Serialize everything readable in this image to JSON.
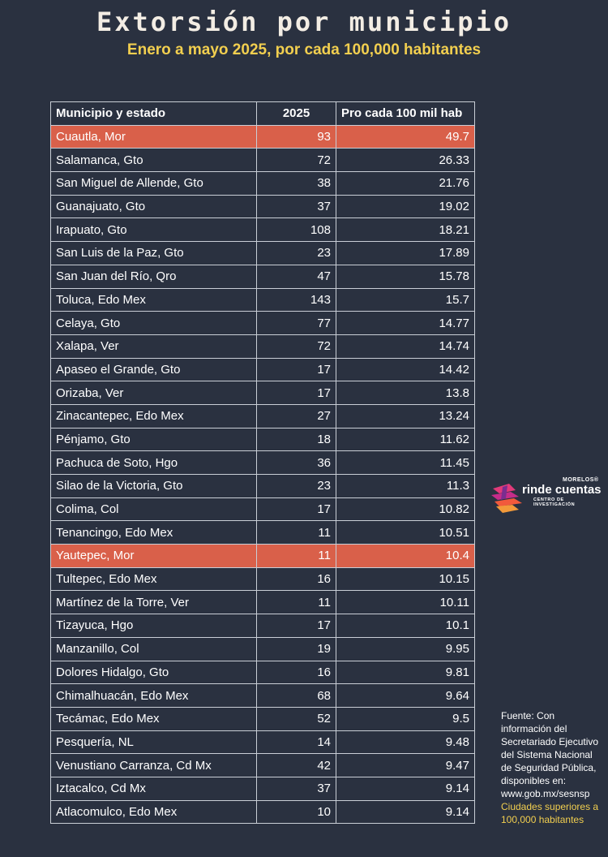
{
  "title": "Extorsión por municipio",
  "subtitle": "Enero a mayo 2025, por cada 100,000 habitantes",
  "table": {
    "headers": [
      "Municipio y estado",
      "2025",
      "Pro cada 100 mil hab"
    ],
    "rows": [
      {
        "name": "Cuautla, Mor",
        "count": "93",
        "rate": "49.7",
        "highlight": true
      },
      {
        "name": "Salamanca, Gto",
        "count": "72",
        "rate": "26.33"
      },
      {
        "name": "San Miguel de Allende, Gto",
        "count": "38",
        "rate": "21.76"
      },
      {
        "name": "Guanajuato, Gto",
        "count": "37",
        "rate": "19.02"
      },
      {
        "name": "Irapuato, Gto",
        "count": "108",
        "rate": "18.21"
      },
      {
        "name": "San Luis de la Paz, Gto",
        "count": "23",
        "rate": "17.89"
      },
      {
        "name": "San Juan del Río, Qro",
        "count": "47",
        "rate": "15.78"
      },
      {
        "name": "Toluca, Edo Mex",
        "count": "143",
        "rate": "15.7"
      },
      {
        "name": "Celaya, Gto",
        "count": "77",
        "rate": "14.77"
      },
      {
        "name": "Xalapa, Ver",
        "count": "72",
        "rate": "14.74"
      },
      {
        "name": "Apaseo el Grande, Gto",
        "count": "17",
        "rate": "14.42"
      },
      {
        "name": "Orizaba, Ver",
        "count": "17",
        "rate": "13.8"
      },
      {
        "name": "Zinacantepec, Edo Mex",
        "count": "27",
        "rate": "13.24"
      },
      {
        "name": "Pénjamo, Gto",
        "count": "18",
        "rate": "11.62"
      },
      {
        "name": "Pachuca de Soto, Hgo",
        "count": "36",
        "rate": "11.45"
      },
      {
        "name": "Silao de la Victoria, Gto",
        "count": "23",
        "rate": "11.3"
      },
      {
        "name": "Colima, Col",
        "count": "17",
        "rate": "10.82"
      },
      {
        "name": "Tenancingo, Edo Mex",
        "count": "11",
        "rate": "10.51"
      },
      {
        "name": "Yautepec, Mor",
        "count": "11",
        "rate": "10.4",
        "highlight": true
      },
      {
        "name": "Tultepec, Edo Mex",
        "count": "16",
        "rate": "10.15"
      },
      {
        "name": "Martínez de la Torre, Ver",
        "count": "11",
        "rate": "10.11"
      },
      {
        "name": "Tizayuca, Hgo",
        "count": "17",
        "rate": "10.1"
      },
      {
        "name": "Manzanillo, Col",
        "count": "19",
        "rate": "9.95"
      },
      {
        "name": "Dolores Hidalgo, Gto",
        "count": "16",
        "rate": "9.81"
      },
      {
        "name": "Chimalhuacán, Edo Mex",
        "count": "68",
        "rate": "9.64"
      },
      {
        "name": "Tecámac, Edo Mex",
        "count": "52",
        "rate": "9.5"
      },
      {
        "name": "Pesquería, NL",
        "count": "14",
        "rate": "9.48"
      },
      {
        "name": "Venustiano Carranza, Cd Mx",
        "count": "42",
        "rate": "9.47"
      },
      {
        "name": "Iztacalco, Cd Mx",
        "count": "37",
        "rate": "9.14"
      },
      {
        "name": "Atlacomulco, Edo Mex",
        "count": "10",
        "rate": "9.14"
      }
    ]
  },
  "logo": {
    "top": "MORELOS®",
    "main": "rinde cuentas",
    "sub": "CENTRO DE INVESTIGACIÓN",
    "icon": "folded-ribbon-logo-icon"
  },
  "source": {
    "text": "Fuente: Con información del Secretariado Ejecutivo del Sistema Nacional de Seguridad Pública, disponibles en: www.gob.mx/sesnsp",
    "note": "Ciudades superiores a 100,000 habitantes"
  },
  "colors": {
    "background": "#2a3140",
    "title": "#f3ede4",
    "subtitle": "#f2cf4f",
    "highlight_row": "#d9604a"
  }
}
